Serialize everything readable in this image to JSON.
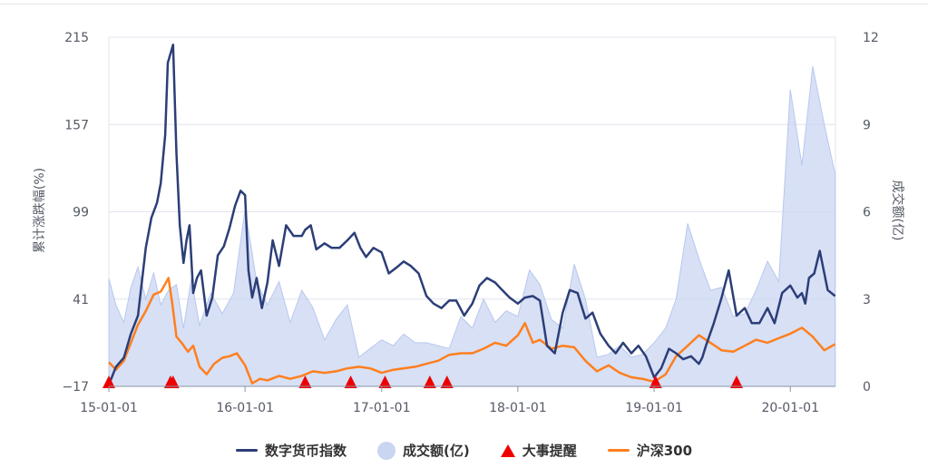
{
  "colors": {
    "index": "#2c3e78",
    "volume": "#c9d5f1",
    "event": "#ee0000",
    "hs300": "#ff7f1e",
    "grid": "#dfe4ee",
    "text": "#555a66"
  },
  "chart_data": {
    "type": "line",
    "xlabel": "",
    "ylabel_left": "累计涨跌幅(%)",
    "ylabel_right": "成交额(亿)",
    "x_ticks": [
      "15-01-01",
      "16-01-01",
      "17-01-01",
      "18-01-01",
      "19-01-01",
      "20-01-01"
    ],
    "y_left_ticks": [
      "215",
      "157",
      "99",
      "41",
      "−17"
    ],
    "y_right_ticks": [
      "12",
      "9",
      "6",
      "3",
      "0"
    ],
    "ylim_left": [
      -17,
      215
    ],
    "ylim_right": [
      0,
      12
    ],
    "xlim": [
      "2015-01-01",
      "2020-05-01"
    ],
    "grid": true,
    "legend_position": "bottom",
    "series": [
      {
        "name": "数字货币指数",
        "axis": "left",
        "x": [
          "2015-01-01",
          "2015-01-20",
          "2015-02-10",
          "2015-03-01",
          "2015-03-20",
          "2015-04-10",
          "2015-04-25",
          "2015-05-10",
          "2015-05-20",
          "2015-06-01",
          "2015-06-08",
          "2015-06-15",
          "2015-06-22",
          "2015-07-01",
          "2015-07-10",
          "2015-07-20",
          "2015-07-28",
          "2015-08-05",
          "2015-08-15",
          "2015-08-25",
          "2015-09-05",
          "2015-09-20",
          "2015-10-05",
          "2015-10-20",
          "2015-11-05",
          "2015-11-20",
          "2015-12-05",
          "2015-12-20",
          "2016-01-01",
          "2016-01-10",
          "2016-01-20",
          "2016-02-01",
          "2016-02-15",
          "2016-03-01",
          "2016-03-15",
          "2016-04-01",
          "2016-04-20",
          "2016-05-10",
          "2016-06-01",
          "2016-06-10",
          "2016-06-25",
          "2016-07-10",
          "2016-08-01",
          "2016-08-20",
          "2016-09-10",
          "2016-10-01",
          "2016-10-20",
          "2016-11-05",
          "2016-11-20",
          "2016-12-10",
          "2017-01-01",
          "2017-01-20",
          "2017-02-10",
          "2017-03-01",
          "2017-03-20",
          "2017-04-10",
          "2017-05-01",
          "2017-05-20",
          "2017-06-10",
          "2017-07-01",
          "2017-07-20",
          "2017-08-10",
          "2017-09-01",
          "2017-09-20",
          "2017-10-10",
          "2017-11-01",
          "2017-11-20",
          "2017-12-10",
          "2018-01-01",
          "2018-01-20",
          "2018-02-10",
          "2018-03-01",
          "2018-03-20",
          "2018-04-10",
          "2018-05-01",
          "2018-05-20",
          "2018-06-10",
          "2018-07-01",
          "2018-07-20",
          "2018-08-10",
          "2018-09-01",
          "2018-09-20",
          "2018-10-10",
          "2018-11-01",
          "2018-11-20",
          "2018-12-10",
          "2019-01-01",
          "2019-01-20",
          "2019-02-10",
          "2019-03-01",
          "2019-03-20",
          "2019-04-10",
          "2019-05-01",
          "2019-05-10",
          "2019-05-20",
          "2019-06-10",
          "2019-07-01",
          "2019-07-20",
          "2019-08-10",
          "2019-09-01",
          "2019-09-20",
          "2019-10-10",
          "2019-11-01",
          "2019-11-20",
          "2019-12-10",
          "2020-01-01",
          "2020-01-20",
          "2020-02-01",
          "2020-02-10",
          "2020-02-20",
          "2020-03-05",
          "2020-03-20",
          "2020-04-10",
          "2020-04-30"
        ],
        "y": [
          -16,
          -4,
          2,
          18,
          30,
          75,
          95,
          105,
          118,
          150,
          198,
          204,
          210,
          138,
          90,
          65,
          80,
          90,
          45,
          55,
          60,
          30,
          42,
          70,
          76,
          88,
          103,
          113,
          110,
          60,
          42,
          55,
          35,
          52,
          80,
          63,
          90,
          83,
          83,
          87,
          90,
          74,
          78,
          75,
          75,
          80,
          85,
          75,
          69,
          75,
          72,
          58,
          62,
          66,
          63,
          58,
          43,
          38,
          35,
          40,
          40,
          30,
          38,
          50,
          55,
          52,
          47,
          42,
          38,
          42,
          43,
          40,
          10,
          5,
          32,
          47,
          45,
          28,
          32,
          18,
          10,
          5,
          12,
          5,
          10,
          3,
          -11,
          -5,
          8,
          5,
          1,
          3,
          -2,
          2,
          10,
          25,
          42,
          60,
          30,
          35,
          25,
          25,
          35,
          25,
          45,
          50,
          42,
          45,
          38,
          55,
          58,
          73,
          47,
          43
        ]
      },
      {
        "name": "成交额(亿)",
        "axis": "right",
        "x": [
          "2015-01-01",
          "2015-01-20",
          "2015-02-10",
          "2015-03-01",
          "2015-03-20",
          "2015-04-10",
          "2015-05-01",
          "2015-05-20",
          "2015-06-10",
          "2015-07-01",
          "2015-07-20",
          "2015-08-10",
          "2015-09-01",
          "2015-10-01",
          "2015-11-01",
          "2015-12-01",
          "2016-01-01",
          "2016-02-01",
          "2016-03-01",
          "2016-04-01",
          "2016-05-01",
          "2016-06-01",
          "2016-07-01",
          "2016-08-01",
          "2016-09-01",
          "2016-10-01",
          "2016-11-01",
          "2016-12-01",
          "2017-01-01",
          "2017-02-01",
          "2017-03-01",
          "2017-04-01",
          "2017-05-01",
          "2017-06-01",
          "2017-07-01",
          "2017-08-01",
          "2017-09-01",
          "2017-10-01",
          "2017-11-01",
          "2017-12-01",
          "2018-01-01",
          "2018-02-01",
          "2018-03-01",
          "2018-04-01",
          "2018-05-01",
          "2018-06-01",
          "2018-07-01",
          "2018-08-01",
          "2018-09-01",
          "2018-10-01",
          "2018-11-01",
          "2018-12-01",
          "2019-01-01",
          "2019-02-01",
          "2019-03-01",
          "2019-04-01",
          "2019-05-01",
          "2019-06-01",
          "2019-07-01",
          "2019-08-01",
          "2019-09-01",
          "2019-10-01",
          "2019-11-01",
          "2019-12-01",
          "2020-01-01",
          "2020-02-01",
          "2020-03-01",
          "2020-04-01",
          "2020-04-30"
        ],
        "y": [
          3.7,
          2.8,
          2.2,
          3.4,
          4.1,
          3.0,
          3.9,
          2.8,
          3.3,
          3.5,
          2.0,
          3.7,
          2.1,
          3.2,
          2.5,
          3.2,
          6.1,
          3.6,
          2.8,
          3.6,
          2.2,
          3.3,
          2.7,
          1.6,
          2.3,
          2.8,
          1.0,
          1.3,
          1.6,
          1.4,
          1.8,
          1.5,
          1.5,
          1.4,
          1.3,
          2.4,
          2.0,
          3.0,
          2.2,
          2.6,
          2.4,
          4.0,
          3.5,
          2.3,
          2.0,
          4.2,
          3.0,
          1.0,
          1.1,
          1.4,
          1.0,
          1.1,
          1.5,
          2.0,
          3.0,
          5.6,
          4.4,
          3.3,
          3.4,
          2.4,
          2.5,
          3.3,
          4.3,
          3.6,
          10.2,
          7.6,
          11.0,
          9.0,
          7.3
        ]
      },
      {
        "name": "沪深300",
        "axis": "left",
        "x": [
          "2015-01-01",
          "2015-01-20",
          "2015-02-10",
          "2015-03-01",
          "2015-03-20",
          "2015-04-10",
          "2015-05-01",
          "2015-05-20",
          "2015-06-01",
          "2015-06-10",
          "2015-06-20",
          "2015-07-01",
          "2015-07-15",
          "2015-08-01",
          "2015-08-15",
          "2015-09-01",
          "2015-09-20",
          "2015-10-10",
          "2015-11-01",
          "2015-11-20",
          "2015-12-10",
          "2016-01-01",
          "2016-01-20",
          "2016-02-10",
          "2016-03-01",
          "2016-04-01",
          "2016-05-01",
          "2016-06-01",
          "2016-07-01",
          "2016-08-01",
          "2016-09-01",
          "2016-10-01",
          "2016-11-01",
          "2016-12-01",
          "2017-01-01",
          "2017-02-01",
          "2017-03-01",
          "2017-04-01",
          "2017-05-01",
          "2017-06-01",
          "2017-07-01",
          "2017-08-01",
          "2017-09-01",
          "2017-10-01",
          "2017-11-01",
          "2017-12-01",
          "2018-01-01",
          "2018-01-20",
          "2018-02-10",
          "2018-03-01",
          "2018-04-01",
          "2018-05-01",
          "2018-06-01",
          "2018-07-01",
          "2018-08-01",
          "2018-09-01",
          "2018-10-01",
          "2018-11-01",
          "2018-12-01",
          "2019-01-01",
          "2019-02-01",
          "2019-03-01",
          "2019-04-01",
          "2019-05-01",
          "2019-06-01",
          "2019-07-01",
          "2019-08-01",
          "2019-09-01",
          "2019-10-01",
          "2019-11-01",
          "2019-12-01",
          "2020-01-01",
          "2020-02-01",
          "2020-03-01",
          "2020-04-01",
          "2020-04-30"
        ],
        "y": [
          -1,
          -6,
          0,
          12,
          24,
          33,
          44,
          46,
          51,
          55,
          38,
          16,
          12,
          6,
          10,
          -4,
          -9,
          -2,
          2,
          3,
          5,
          -3,
          -15,
          -12,
          -13,
          -10,
          -12,
          -10,
          -7,
          -8,
          -7,
          -5,
          -4,
          -5,
          -8,
          -6,
          -5,
          -4,
          -2,
          0,
          4,
          5,
          5,
          8,
          12,
          10,
          17,
          25,
          12,
          14,
          8,
          10,
          9,
          0,
          -7,
          -3,
          -8,
          -11,
          -12,
          -14,
          -9,
          3,
          10,
          17,
          12,
          7,
          6,
          10,
          14,
          12,
          15,
          18,
          22,
          16,
          7,
          11
        ]
      },
      {
        "name": "大事提醒",
        "type": "event-markers",
        "x": [
          "2015-01-01",
          "2015-06-15",
          "2015-06-22",
          "2016-06-10",
          "2016-10-10",
          "2017-01-10",
          "2017-05-10",
          "2017-06-25",
          "2019-01-05",
          "2019-08-10"
        ]
      }
    ],
    "legend": [
      "数字货币指数",
      "成交额(亿)",
      "大事提醒",
      "沪深300"
    ]
  }
}
